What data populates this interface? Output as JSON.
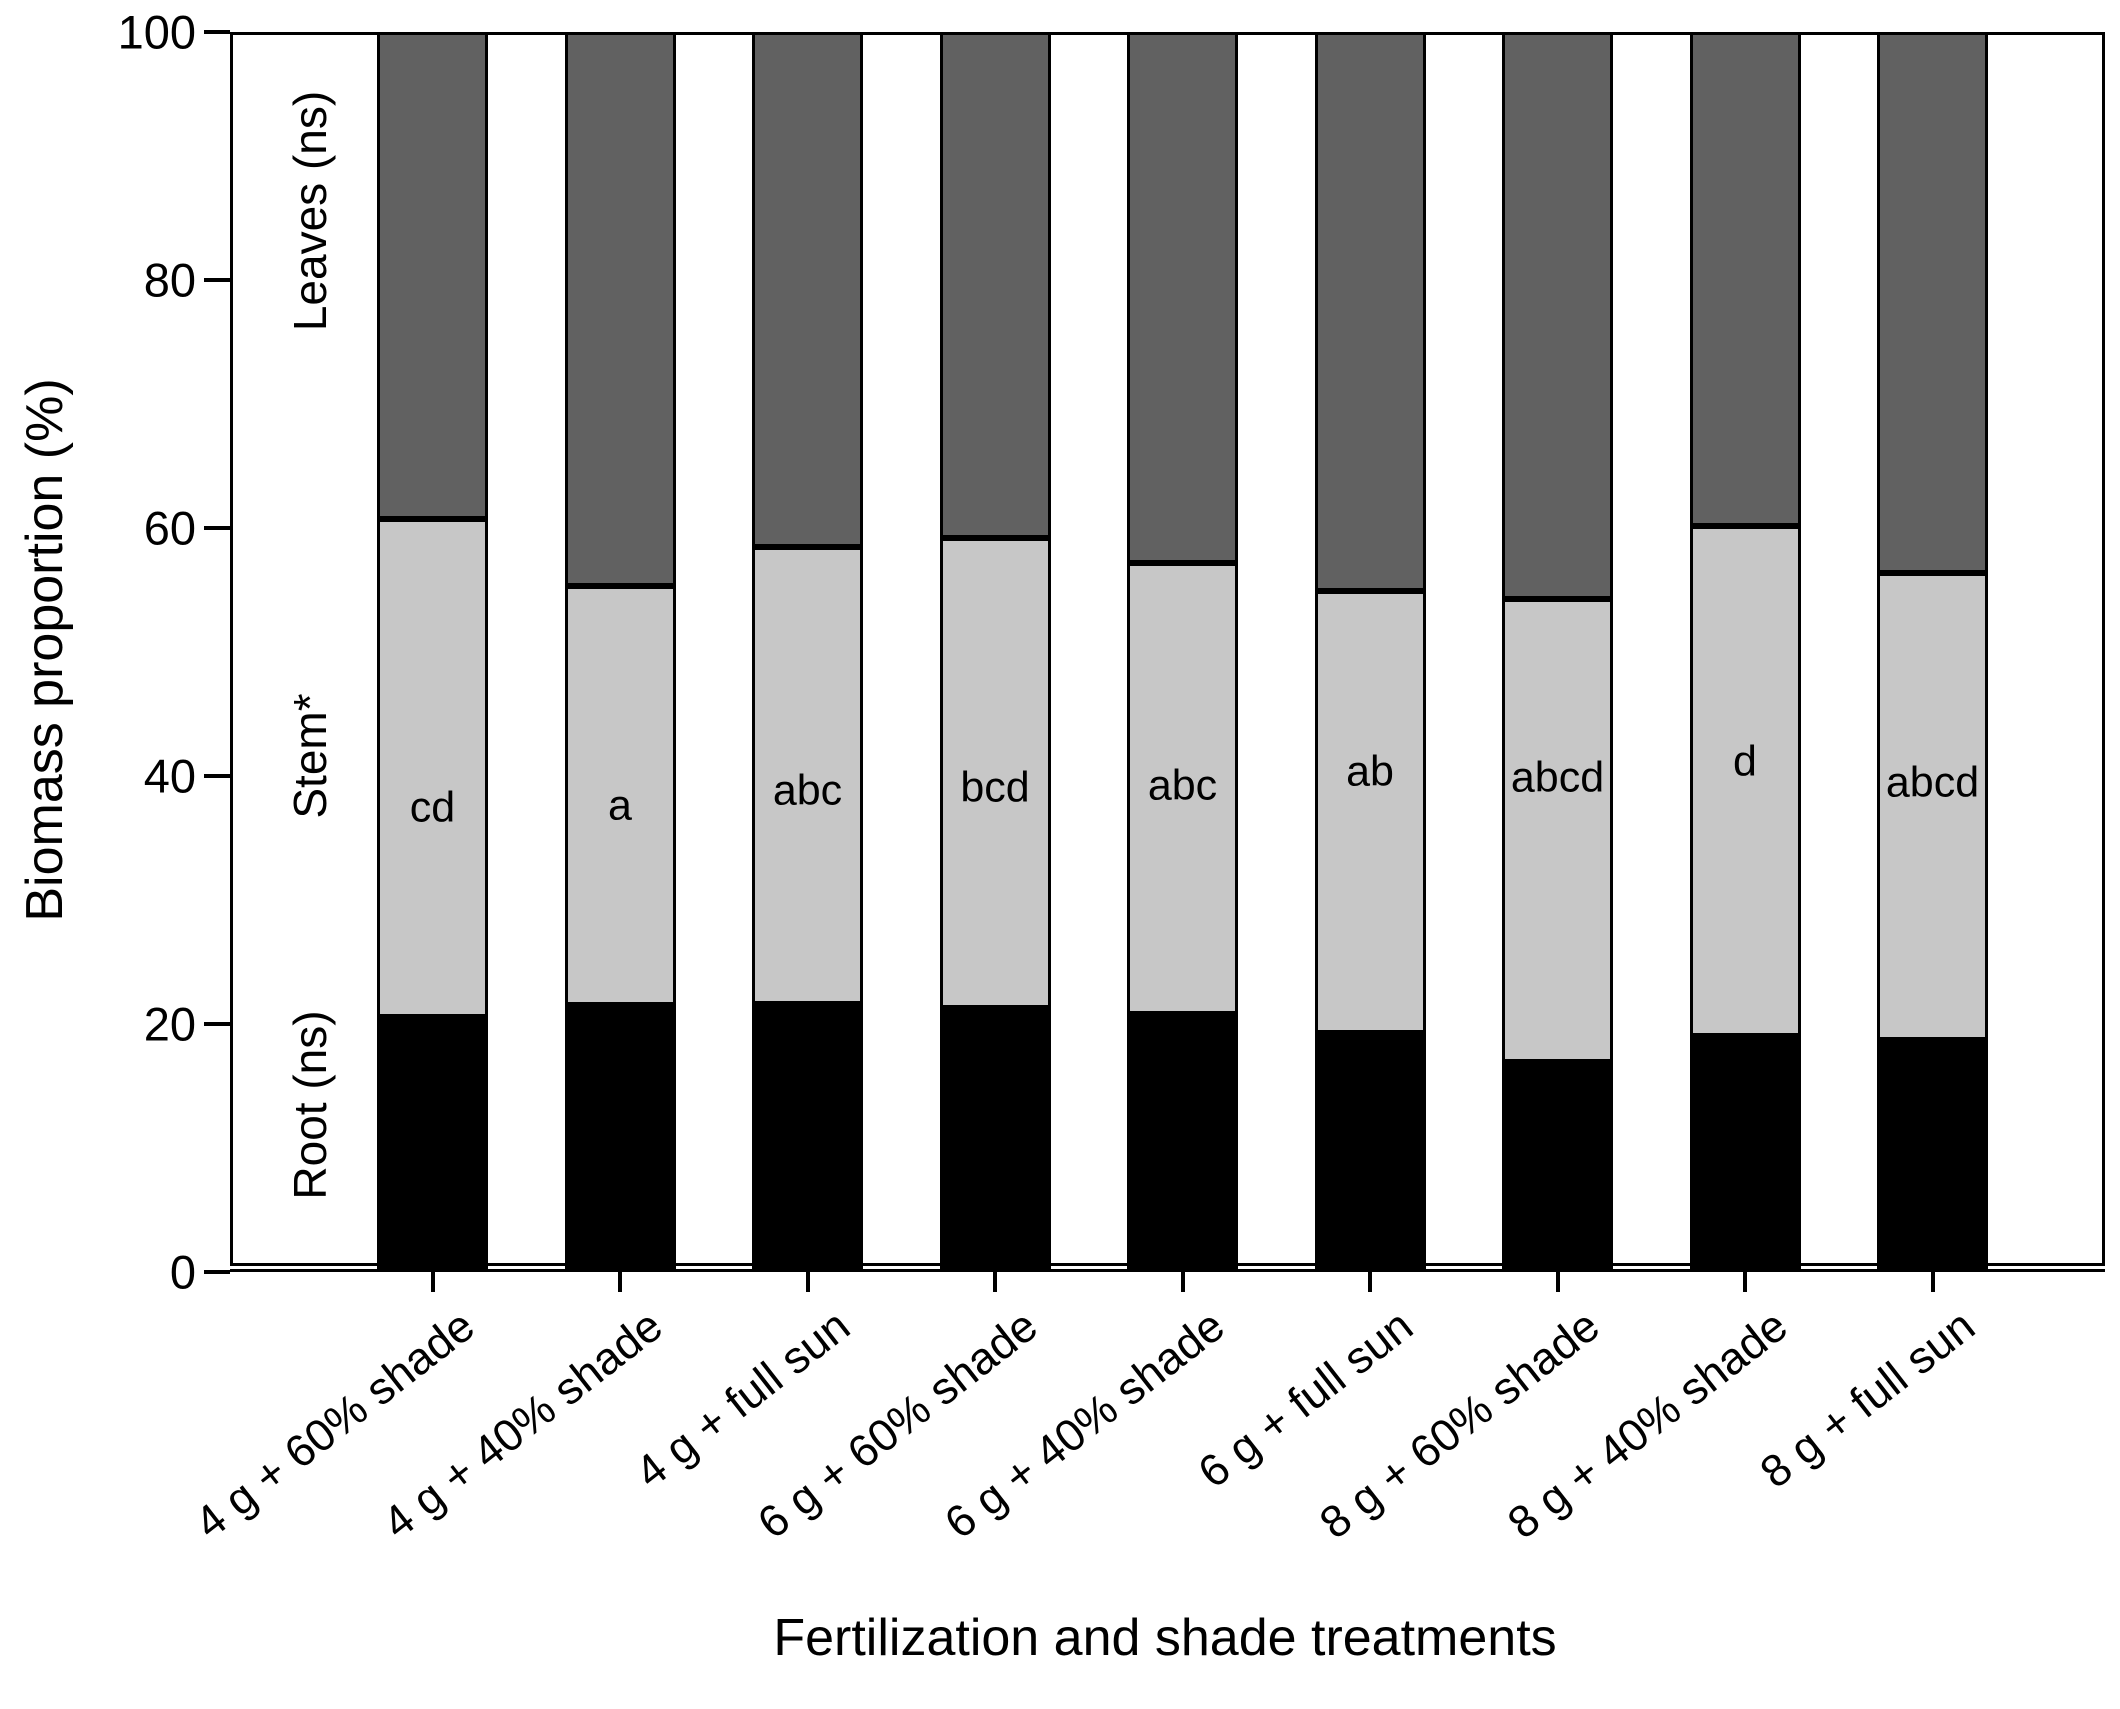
{
  "chart_data": {
    "type": "bar",
    "stacked": true,
    "title": "",
    "xlabel": "Fertilization and shade treatments",
    "ylabel": "Biomass proportion (%)",
    "ylim": [
      0,
      100
    ],
    "yticks": [
      0,
      20,
      40,
      60,
      80,
      100
    ],
    "grid": false,
    "legend_position": "labels rotated inside plot, left of first bar",
    "categories": [
      "4 g + 60% shade",
      "4 g + 40% shade",
      "4 g + full sun",
      "6 g + 60% shade",
      "6 g + 40% shade",
      "6 g + full sun",
      "8 g + 60% shade",
      "8 g + 40% shade",
      "8 g + full sun"
    ],
    "series": [
      {
        "name": "Root (ns)",
        "color": "#000000",
        "values": [
          20.6,
          21.5,
          21.6,
          21.3,
          20.8,
          19.3,
          16.9,
          19.0,
          18.7
        ]
      },
      {
        "name": "Stem*",
        "color": "#c7c7c7",
        "values": [
          40.1,
          33.8,
          36.9,
          37.9,
          36.4,
          35.6,
          37.4,
          41.2,
          37.7
        ]
      },
      {
        "name": "Leaves (ns)",
        "color": "#616161",
        "values": [
          39.3,
          44.7,
          41.5,
          40.8,
          42.8,
          45.1,
          45.7,
          39.8,
          43.6
        ]
      }
    ],
    "bar_annotations": [
      {
        "category": "4 g + 60% shade",
        "letter": "cd",
        "y_pct": 37.4
      },
      {
        "category": "4 g + 40% shade",
        "letter": "a",
        "y_pct": 37.6
      },
      {
        "category": "4 g + full sun",
        "letter": "abc",
        "y_pct": 38.8
      },
      {
        "category": "6 g + 60% shade",
        "letter": "bcd",
        "y_pct": 39.0
      },
      {
        "category": "6 g + 40% shade",
        "letter": "abc",
        "y_pct": 39.2
      },
      {
        "category": "6 g + full sun",
        "letter": "ab",
        "y_pct": 40.3
      },
      {
        "category": "8 g + 60% shade",
        "letter": "abcd",
        "y_pct": 39.8
      },
      {
        "category": "8 g + 40% shade",
        "letter": "d",
        "y_pct": 41.1
      },
      {
        "category": "8 g + full sun",
        "letter": "abcd",
        "y_pct": 39.4
      }
    ],
    "segment_labels": [
      {
        "text": "Leaves (ns)",
        "y_pct": 85.6
      },
      {
        "text": "Stem*",
        "y_pct": 41.6
      },
      {
        "text": "Root (ns)",
        "y_pct": 13.5
      }
    ]
  }
}
